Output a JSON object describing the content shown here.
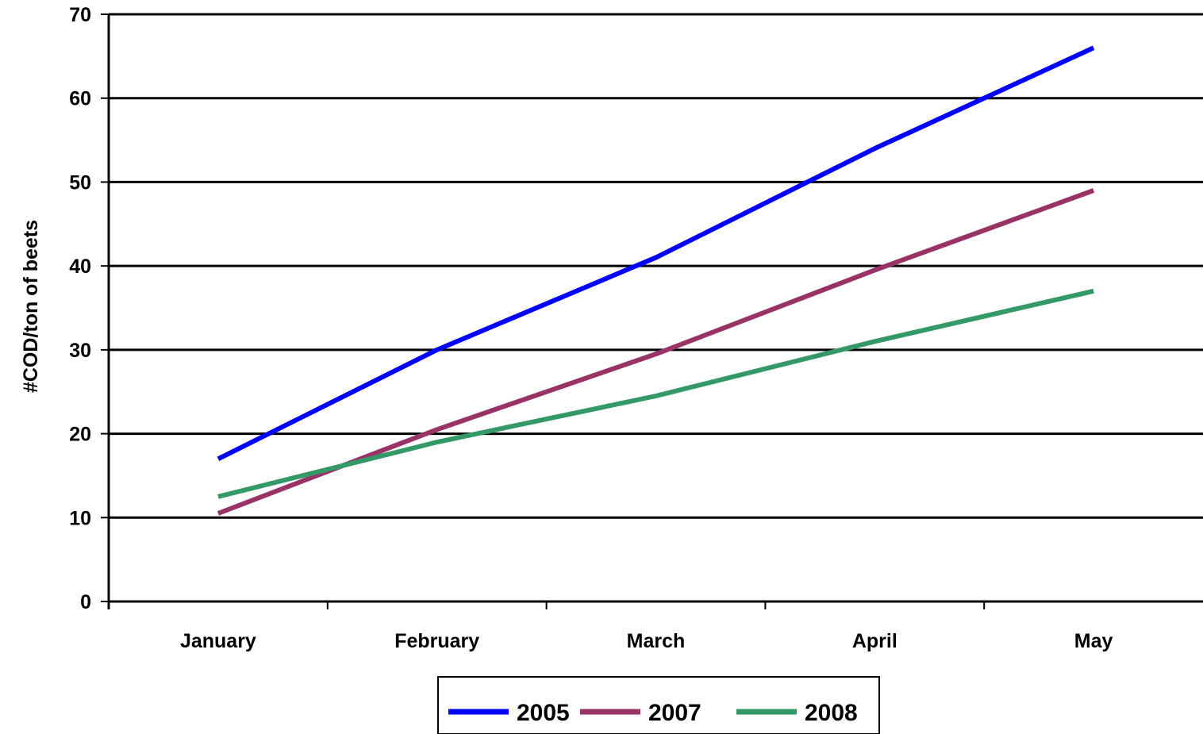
{
  "chart_data": {
    "type": "line",
    "title": "",
    "xlabel": "",
    "ylabel": "#COD/ton of beets",
    "categories": [
      "January",
      "February",
      "March",
      "April",
      "May"
    ],
    "ylim": [
      0,
      70
    ],
    "yticks": [
      0,
      10,
      20,
      30,
      40,
      50,
      60,
      70
    ],
    "grid": true,
    "legend_position": "bottom",
    "series": [
      {
        "name": "2005",
        "color": "#0000ff",
        "values": [
          17,
          30,
          41,
          54,
          66
        ]
      },
      {
        "name": "2007",
        "color": "#993366",
        "values": [
          10.5,
          20.5,
          29.5,
          39.5,
          49
        ]
      },
      {
        "name": "2008",
        "color": "#339966",
        "values": [
          12.5,
          19,
          24.5,
          31,
          37
        ]
      }
    ]
  }
}
